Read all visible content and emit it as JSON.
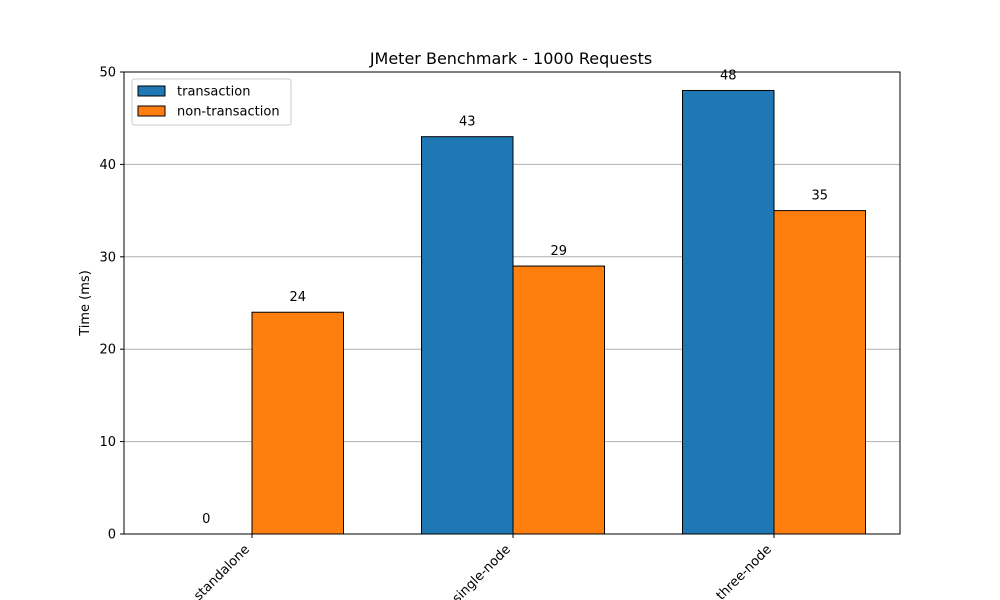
{
  "chart_data": {
    "type": "bar",
    "title": "JMeter Benchmark - 1000 Requests",
    "xlabel": "",
    "ylabel": "Time (ms)",
    "ylim": [
      0,
      50
    ],
    "yticks": [
      0,
      10,
      20,
      30,
      40,
      50
    ],
    "grid": "horizontal",
    "legend_position": "top-left",
    "categories": [
      "standalone",
      "single-node",
      "three-node"
    ],
    "series": [
      {
        "name": "transaction",
        "color": "#1f77b4",
        "values": [
          0,
          43,
          48
        ]
      },
      {
        "name": "non-transaction",
        "color": "#ff7f0e",
        "values": [
          24,
          29,
          35
        ]
      }
    ]
  }
}
